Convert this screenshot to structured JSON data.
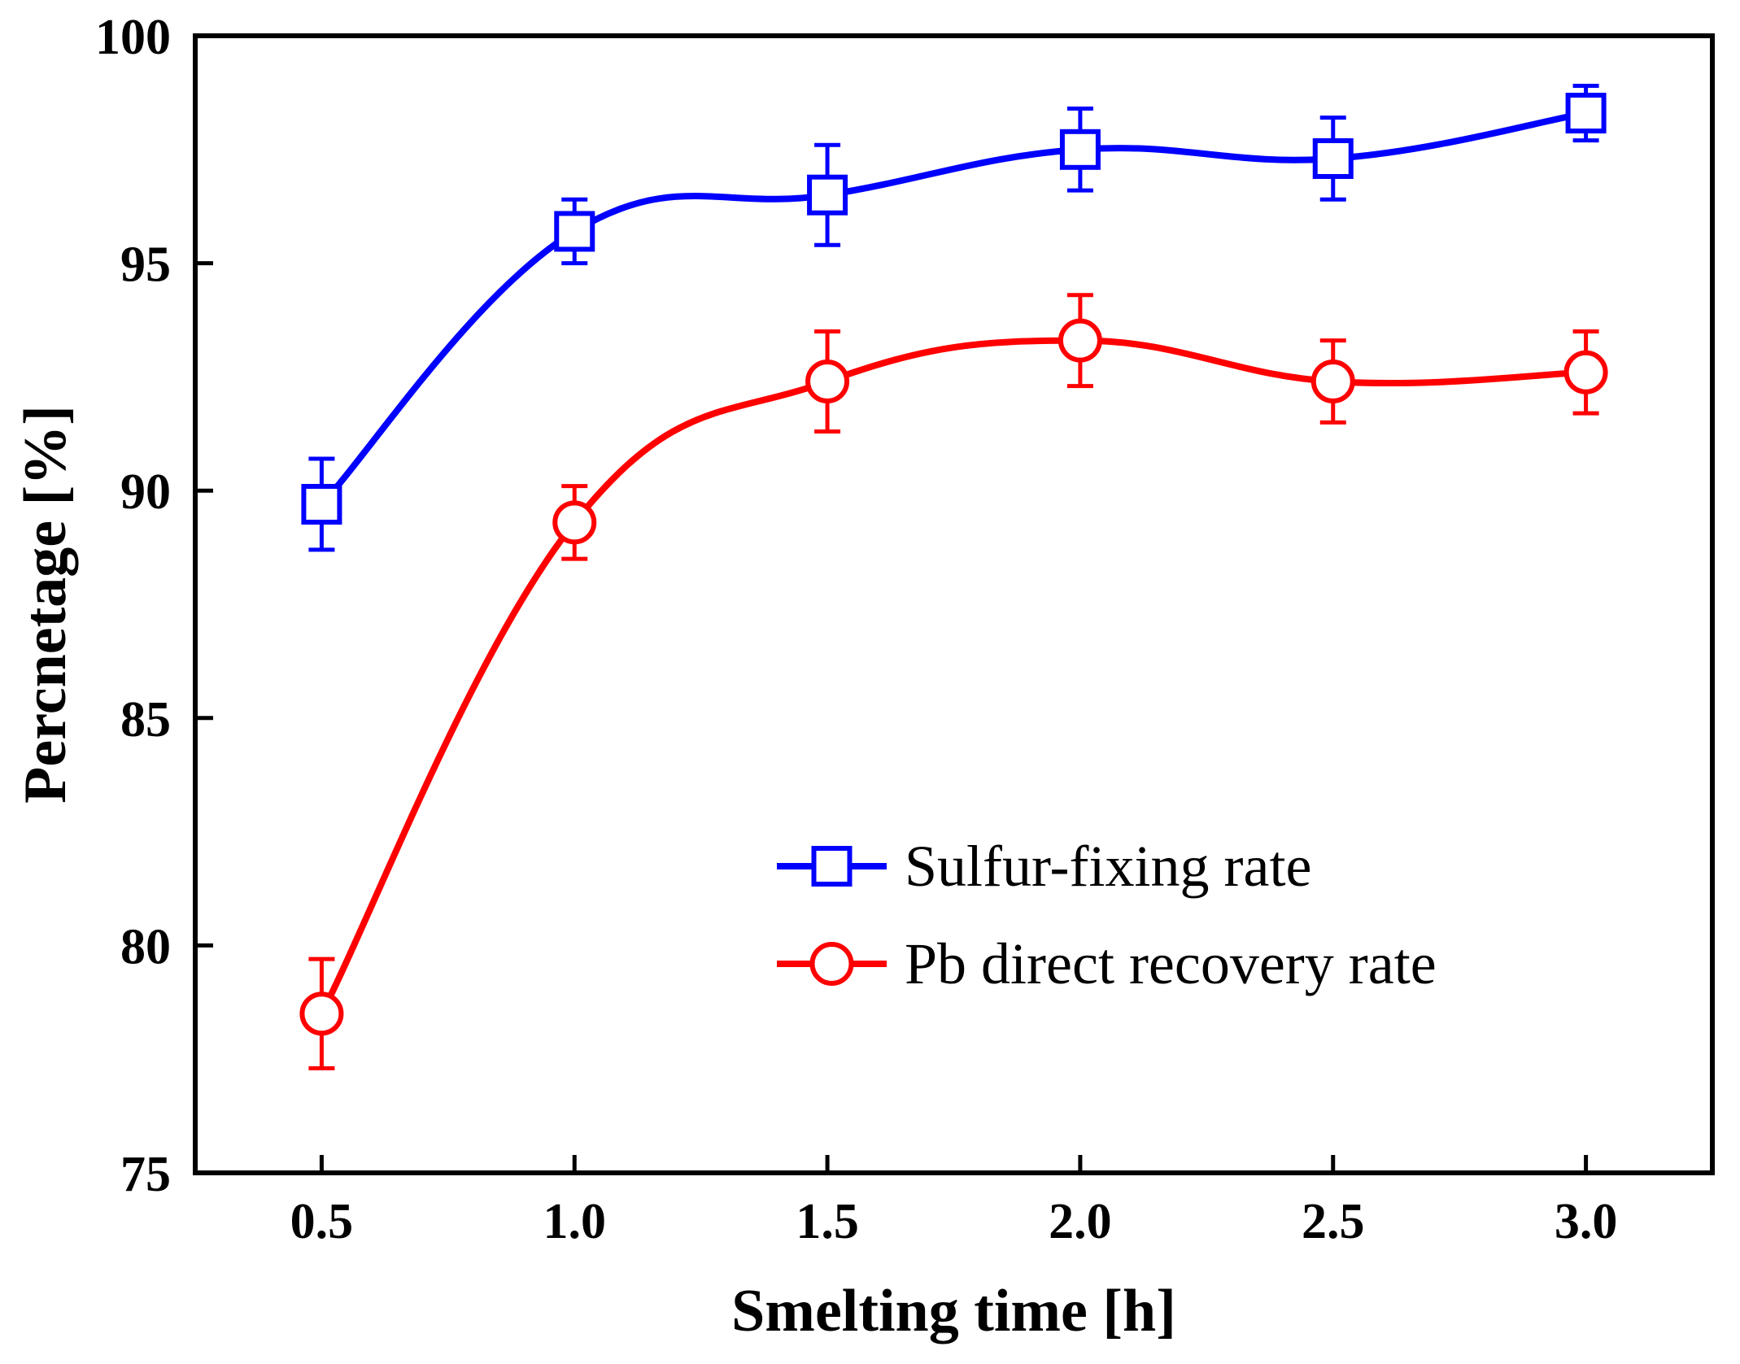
{
  "chart_data": {
    "type": "line",
    "title": "",
    "xlabel": "Smelting time [h]",
    "ylabel": "Percnetage [%]",
    "xlim": [
      0.25,
      3.25
    ],
    "ylim": [
      75,
      100
    ],
    "x_ticks": [
      0.5,
      1.0,
      1.5,
      2.0,
      2.5,
      3.0
    ],
    "x_tick_labels": [
      "0.5",
      "1.0",
      "1.5",
      "2.0",
      "2.5",
      "3.0"
    ],
    "y_ticks": [
      75,
      80,
      85,
      90,
      95,
      100
    ],
    "y_tick_labels": [
      "75",
      "80",
      "85",
      "90",
      "95",
      "100"
    ],
    "grid": false,
    "legend_position": "lower-right",
    "series": [
      {
        "name": "Sulfur-fixing rate",
        "color": "#0000ff",
        "marker": "square",
        "x": [
          0.5,
          1.0,
          1.5,
          2.0,
          2.5,
          3.0
        ],
        "values": [
          89.7,
          95.7,
          96.5,
          97.5,
          97.3,
          98.3
        ],
        "error": [
          1.0,
          0.7,
          1.1,
          0.9,
          0.9,
          0.6
        ]
      },
      {
        "name": "Pb direct recovery rate",
        "color": "#ff0000",
        "marker": "circle",
        "x": [
          0.5,
          1.0,
          1.5,
          2.0,
          2.5,
          3.0
        ],
        "values": [
          78.5,
          89.3,
          92.4,
          93.3,
          92.4,
          92.6
        ],
        "error": [
          1.2,
          0.8,
          1.1,
          1.0,
          0.9,
          0.9
        ]
      }
    ]
  }
}
